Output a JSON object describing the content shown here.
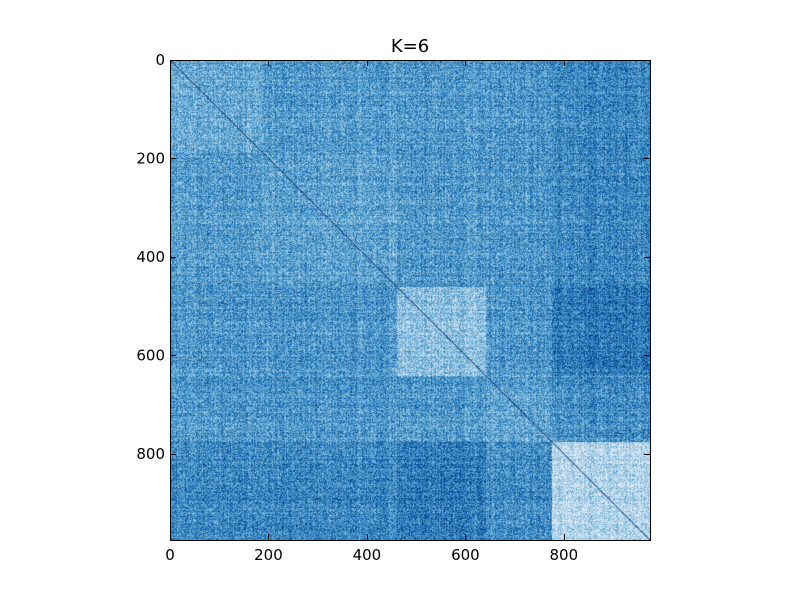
{
  "chart_data": {
    "type": "heatmap",
    "title": "K=6",
    "xlabel": "",
    "ylabel": "",
    "matrix_size": 975,
    "xlim": [
      0,
      975
    ],
    "ylim": [
      975,
      0
    ],
    "xticks": [
      0,
      200,
      400,
      600,
      800
    ],
    "yticks": [
      0,
      200,
      400,
      600,
      800
    ],
    "xtick_labels": [
      "0",
      "200",
      "400",
      "600",
      "800"
    ],
    "ytick_labels": [
      "0",
      "200",
      "400",
      "600",
      "800"
    ],
    "grid": false,
    "legend": "none",
    "colormap": "Blues",
    "colors": {
      "low": "#f7fbff",
      "mid": "#6baed6",
      "high": "#08306b",
      "diagonal": "#08306b"
    },
    "block_boundaries": [
      0,
      185,
      460,
      640,
      775,
      975
    ],
    "block_values": [
      [
        0.52,
        0.58,
        0.6,
        0.6,
        0.66
      ],
      [
        0.58,
        0.55,
        0.6,
        0.6,
        0.66
      ],
      [
        0.6,
        0.6,
        0.42,
        0.6,
        0.72
      ],
      [
        0.6,
        0.6,
        0.6,
        0.55,
        0.64
      ],
      [
        0.66,
        0.66,
        0.72,
        0.64,
        0.3
      ]
    ],
    "noise_amplitude": 0.22
  }
}
